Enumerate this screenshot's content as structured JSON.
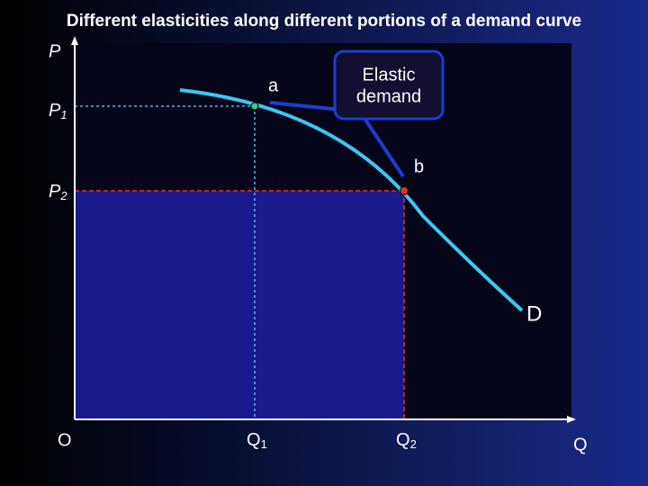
{
  "title": "Different elasticities along different portions of a demand curve",
  "axes": {
    "y": "P",
    "x": "Q",
    "origin": "O"
  },
  "price_levels": [
    {
      "main": "P",
      "sub": "1"
    },
    {
      "main": "P",
      "sub": "2"
    }
  ],
  "quantity_levels": [
    {
      "main": "Q",
      "sub": "1"
    },
    {
      "main": "Q",
      "sub": "2"
    }
  ],
  "points": [
    "a",
    "b"
  ],
  "curve_label": "D",
  "callout": [
    "Elastic",
    "demand"
  ]
}
